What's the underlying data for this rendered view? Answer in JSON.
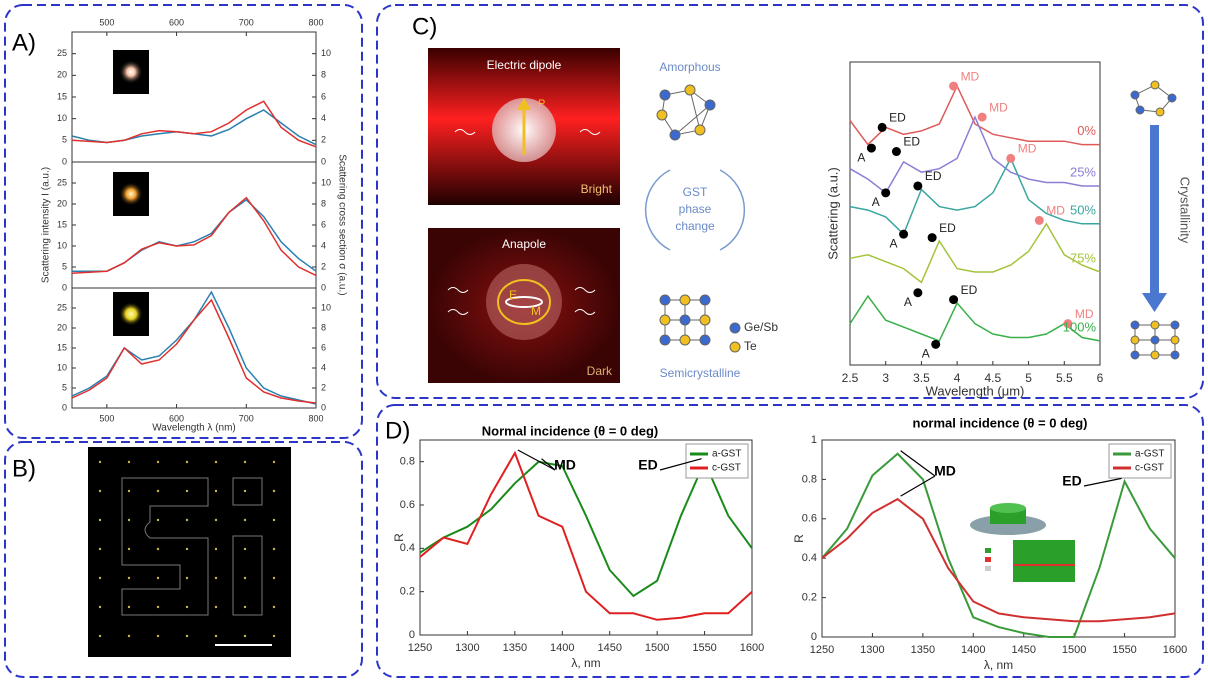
{
  "panels": [
    "A)",
    "B)",
    "C)",
    "D)"
  ],
  "panel_c": {
    "top_image": {
      "title": "Electric dipole",
      "vector": "P",
      "caption": "Bright"
    },
    "bottom_image": {
      "title": "Anapole",
      "letters": [
        "E",
        "M"
      ],
      "caption": "Dark"
    },
    "phases": {
      "top": "Amorphous",
      "middle": [
        "GST",
        "phase",
        "change"
      ],
      "bottom": "Semicrystalline"
    },
    "atoms": [
      "Ge/Sb",
      "Te"
    ],
    "arrow_label": "Crystallinity"
  },
  "chart_data": [
    {
      "type": "line",
      "x": [
        450,
        475,
        500,
        525,
        550,
        575,
        600,
        625,
        650,
        675,
        700,
        725,
        750,
        775,
        800
      ],
      "xlim": [
        450,
        800
      ],
      "xticks": [
        500,
        600,
        700,
        800
      ],
      "ylim": [
        0,
        30
      ],
      "yticks": [
        0,
        5,
        10,
        15,
        20,
        25
      ],
      "y2lim": [
        0,
        12
      ],
      "y2ticks": [
        0,
        2,
        4,
        6,
        8,
        10
      ],
      "series": [
        {
          "color": "#2a7fb0",
          "values": [
            6,
            5,
            4.5,
            5,
            6,
            6.5,
            7,
            6.5,
            6,
            7.5,
            10,
            12,
            9,
            6,
            4
          ]
        },
        {
          "color": "#e0302e",
          "axis": "y2",
          "values": [
            2,
            1.9,
            1.8,
            2,
            2.6,
            2.9,
            2.8,
            2.6,
            2.8,
            3.6,
            4.8,
            5.6,
            3.2,
            2,
            1.4
          ]
        }
      ]
    },
    {
      "type": "line",
      "x": [
        450,
        475,
        500,
        525,
        550,
        575,
        600,
        625,
        650,
        675,
        700,
        725,
        750,
        775,
        800
      ],
      "xlim": [
        450,
        800
      ],
      "ylim": [
        0,
        30
      ],
      "yticks": [
        0,
        5,
        10,
        15,
        20,
        25
      ],
      "y2lim": [
        0,
        12
      ],
      "y2ticks": [
        0,
        2,
        4,
        6,
        8,
        10
      ],
      "ylabel": "Scattering intensity I (a.u.)",
      "y2label": "Scattering cross section σ (a.u.)",
      "series": [
        {
          "color": "#2a7fb0",
          "values": [
            4,
            4,
            4,
            6,
            9,
            11,
            10,
            11,
            13,
            18,
            21,
            17,
            11,
            7,
            4
          ]
        },
        {
          "color": "#e0302e",
          "axis": "y2",
          "values": [
            1.4,
            1.5,
            1.6,
            2.4,
            3.7,
            4.3,
            4,
            4.1,
            5,
            7.2,
            8.6,
            6.4,
            3.6,
            2,
            1.2
          ]
        }
      ]
    },
    {
      "type": "line",
      "x": [
        450,
        475,
        500,
        525,
        550,
        575,
        600,
        625,
        650,
        675,
        700,
        725,
        750,
        775,
        800
      ],
      "xlim": [
        450,
        800
      ],
      "xticks": [
        500,
        600,
        700,
        800
      ],
      "xlabel": "Wavelength λ (nm)",
      "ylim": [
        0,
        30
      ],
      "yticks": [
        0,
        5,
        10,
        15,
        20,
        25
      ],
      "y2lim": [
        0,
        12
      ],
      "y2ticks": [
        0,
        2,
        4,
        6,
        8,
        10
      ],
      "series": [
        {
          "color": "#2a7fb0",
          "values": [
            3,
            5,
            8,
            15,
            12,
            13,
            17,
            22,
            29,
            20,
            10,
            5,
            3,
            2,
            1
          ]
        },
        {
          "color": "#e0302e",
          "axis": "y2",
          "values": [
            1,
            1.8,
            3,
            6,
            4.4,
            4.8,
            6.4,
            8.8,
            10.8,
            7,
            3,
            1.6,
            1,
            0.7,
            0.5
          ]
        }
      ]
    },
    {
      "type": "line",
      "x": [
        2.5,
        2.75,
        3,
        3.25,
        3.5,
        3.75,
        4,
        4.25,
        4.5,
        4.75,
        5,
        5.25,
        5.5,
        5.75,
        6
      ],
      "xlim": [
        2.5,
        6
      ],
      "xticks": [
        2.5,
        3,
        3.5,
        4,
        4.5,
        5,
        5.5,
        6
      ],
      "ylim": [
        1.2,
        10
      ],
      "xlabel": "Wavelength (μm)",
      "ylabel": "Scattering (a.u.)",
      "series": [
        {
          "name": "0%",
          "color": "#e05a5a",
          "values": [
            8.3,
            7.6,
            8.1,
            7.9,
            8,
            8.2,
            9.3,
            8.2,
            7.9,
            7.8,
            7.7,
            7.7,
            7.7,
            7.6,
            7.6
          ],
          "markers": [
            {
              "label": "A",
              "x": 2.8,
              "y": 7.5,
              "color": "#000000"
            },
            {
              "label": "ED",
              "x": 2.95,
              "y": 8.1,
              "color": "#000000"
            },
            {
              "label": "MD",
              "x": 3.95,
              "y": 9.3,
              "color": "#f08080"
            }
          ]
        },
        {
          "name": "25%",
          "color": "#8a7fd6",
          "values": [
            6.9,
            6.6,
            6.2,
            7.1,
            6.8,
            6.9,
            7.2,
            8.4,
            7.2,
            6.8,
            6.6,
            6.5,
            6.5,
            6.4,
            6.4
          ],
          "markers": [
            {
              "label": "A",
              "x": 3,
              "y": 6.2,
              "color": "#000000"
            },
            {
              "label": "ED",
              "x": 3.15,
              "y": 7.4,
              "color": "#000000"
            },
            {
              "label": "MD",
              "x": 4.35,
              "y": 8.4,
              "color": "#f08080"
            }
          ]
        },
        {
          "name": "50%",
          "color": "#3aa6a0",
          "values": [
            5.8,
            5.7,
            5.5,
            5,
            6.3,
            5.8,
            5.7,
            5.8,
            6.2,
            7.2,
            6,
            5.6,
            5.4,
            5.3,
            5.3
          ],
          "markers": [
            {
              "label": "A",
              "x": 3.25,
              "y": 5,
              "color": "#000000"
            },
            {
              "label": "ED",
              "x": 3.45,
              "y": 6.4,
              "color": "#000000"
            },
            {
              "label": "MD",
              "x": 4.75,
              "y": 7.2,
              "color": "#f08080"
            }
          ]
        },
        {
          "name": "75%",
          "color": "#a3c43a",
          "values": [
            4.3,
            4.4,
            4.2,
            4,
            3.6,
            4.8,
            4,
            3.9,
            3.9,
            4.1,
            4.5,
            5.3,
            4.4,
            4.1,
            3.9
          ],
          "markers": [
            {
              "label": "A",
              "x": 3.45,
              "y": 3.3,
              "color": "#000000"
            },
            {
              "label": "ED",
              "x": 3.65,
              "y": 4.9,
              "color": "#000000"
            },
            {
              "label": "MD",
              "x": 5.15,
              "y": 5.4,
              "color": "#f08080"
            }
          ]
        },
        {
          "name": "100%",
          "color": "#3ab04a",
          "values": [
            2.4,
            3.2,
            2.5,
            2.3,
            2.1,
            1.9,
            3,
            2.4,
            2.1,
            2,
            2,
            2.1,
            2.4,
            2,
            1.9
          ],
          "markers": [
            {
              "label": "A",
              "x": 3.7,
              "y": 1.8,
              "color": "#000000"
            },
            {
              "label": "ED",
              "x": 3.95,
              "y": 3.1,
              "color": "#000000"
            },
            {
              "label": "MD",
              "x": 5.55,
              "y": 2.4,
              "color": "#f08080"
            }
          ]
        }
      ]
    },
    {
      "type": "line",
      "title": "Normal incidence (θ = 0 deg)",
      "x": [
        1250,
        1275,
        1300,
        1325,
        1350,
        1375,
        1400,
        1425,
        1450,
        1475,
        1500,
        1525,
        1550,
        1575,
        1600
      ],
      "xlim": [
        1250,
        1600
      ],
      "xticks": [
        1250,
        1300,
        1350,
        1400,
        1450,
        1500,
        1550,
        1600
      ],
      "ylim": [
        0,
        0.9
      ],
      "yticks": [
        0,
        0.2,
        0.4,
        0.6,
        0.8
      ],
      "xlabel": "λ, nm",
      "ylabel": "R",
      "legend": "upper right",
      "annotations": [
        "MD",
        "ED"
      ],
      "series": [
        {
          "name": "a-GST",
          "color": "#1a8a1a",
          "values": [
            0.38,
            0.45,
            0.5,
            0.58,
            0.7,
            0.8,
            0.78,
            0.55,
            0.3,
            0.18,
            0.25,
            0.55,
            0.8,
            0.55,
            0.4
          ]
        },
        {
          "name": "c-GST",
          "color": "#e02020",
          "values": [
            0.36,
            0.45,
            0.42,
            0.65,
            0.84,
            0.55,
            0.5,
            0.2,
            0.1,
            0.1,
            0.07,
            0.08,
            0.1,
            0.1,
            0.2
          ]
        }
      ]
    },
    {
      "type": "line",
      "title": "normal incidence (θ = 0 deg)",
      "x": [
        1250,
        1275,
        1300,
        1325,
        1350,
        1375,
        1400,
        1425,
        1450,
        1475,
        1500,
        1525,
        1550,
        1575,
        1600
      ],
      "xlim": [
        1250,
        1600
      ],
      "xticks": [
        1250,
        1300,
        1350,
        1400,
        1450,
        1500,
        1550,
        1600
      ],
      "ylim": [
        0,
        1
      ],
      "yticks": [
        0,
        0.2,
        0.4,
        0.6,
        0.8,
        1
      ],
      "xlabel": "λ, nm",
      "ylabel": "R",
      "legend": "upper right",
      "annotations": [
        "MD",
        "ED"
      ],
      "series": [
        {
          "name": "a-GST",
          "color": "#3a9a3a",
          "values": [
            0.4,
            0.55,
            0.82,
            0.93,
            0.8,
            0.4,
            0.1,
            0.05,
            0.02,
            0,
            0,
            0.35,
            0.79,
            0.55,
            0.4
          ]
        },
        {
          "name": "c-GST",
          "color": "#d03030",
          "values": [
            0.4,
            0.5,
            0.63,
            0.7,
            0.6,
            0.35,
            0.18,
            0.12,
            0.1,
            0.09,
            0.08,
            0.08,
            0.09,
            0.1,
            0.12
          ]
        }
      ]
    }
  ]
}
